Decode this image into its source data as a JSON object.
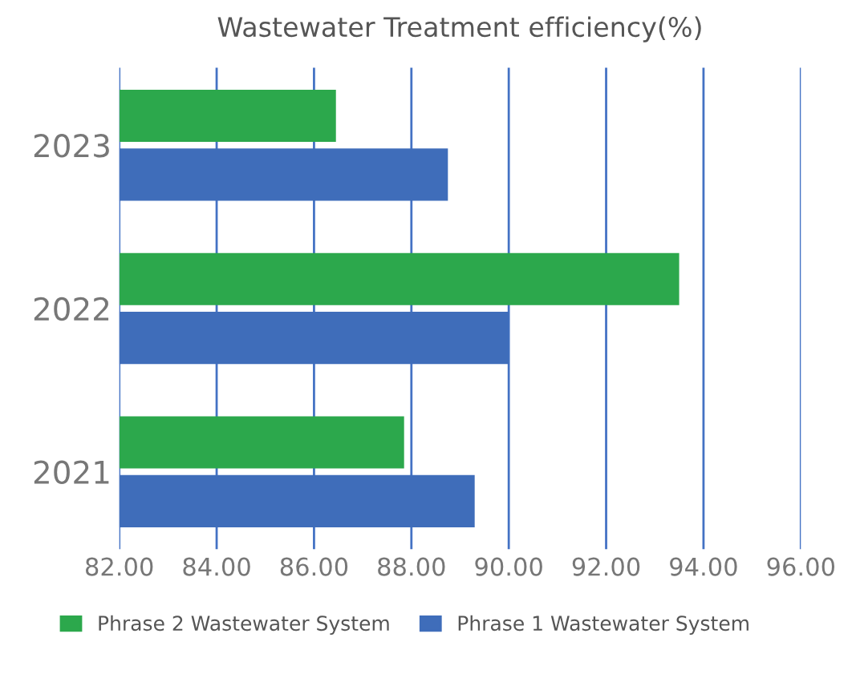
{
  "chart_data": {
    "type": "bar",
    "orientation": "horizontal",
    "title": "Wastewater Treatment efficiency(%)",
    "categories": [
      "2023",
      "2022",
      "2021"
    ],
    "series": [
      {
        "name": "Phrase 2 Wastewater System",
        "color": "#2ca84c",
        "values": [
          86.45,
          93.5,
          87.85
        ]
      },
      {
        "name": "Phrase 1 Wastewater System",
        "color": "#3f6dba",
        "values": [
          88.75,
          90.0,
          89.3
        ]
      }
    ],
    "xlim": [
      82,
      96
    ],
    "xticks": [
      {
        "value": 82,
        "label": "82.00"
      },
      {
        "value": 84,
        "label": "84.00"
      },
      {
        "value": 86,
        "label": "86.00"
      },
      {
        "value": 88,
        "label": "88.00"
      },
      {
        "value": 90,
        "label": "90.00"
      },
      {
        "value": 92,
        "label": "92.00"
      },
      {
        "value": 94,
        "label": "94.00"
      },
      {
        "value": 96,
        "label": "96.00"
      }
    ],
    "grid": "x",
    "legend": "bottom"
  }
}
